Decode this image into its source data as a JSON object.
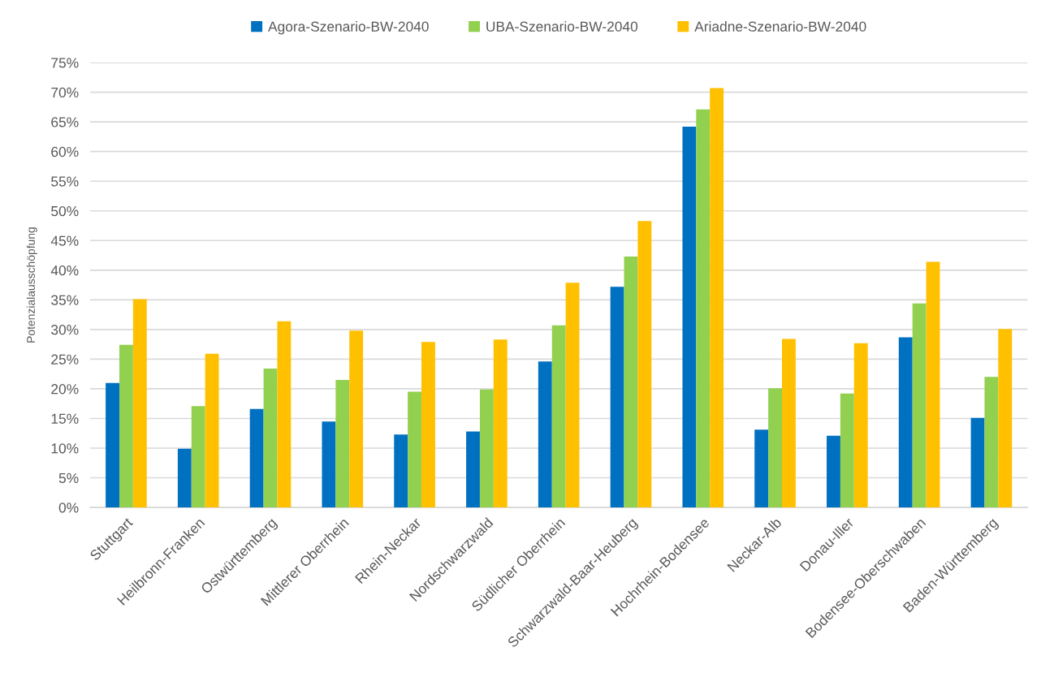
{
  "chart_data": {
    "type": "bar",
    "ylabel": "Potenzialausschöpfung",
    "categories": [
      "Stuttgart",
      "Heilbronn-Franken",
      "Ostwürttemberg",
      "Mittlerer Oberrhein",
      "Rhein-Neckar",
      "Nordschwarzwald",
      "Südlicher Oberrhein",
      "Schwarzwald-Baar-Heuberg",
      "Hochrhein-Bodensee",
      "Neckar-Alb",
      "Donau-Iller",
      "Bodensee-Oberschwaben",
      "Baden-Württemberg"
    ],
    "series": [
      {
        "name": "Agora-Szenario-BW-2040",
        "color": "#0070c0",
        "values": [
          21.0,
          9.9,
          16.6,
          14.5,
          12.3,
          12.8,
          24.6,
          37.2,
          64.2,
          13.1,
          12.1,
          28.7,
          15.1
        ]
      },
      {
        "name": "UBA-Szenario-BW-2040",
        "color": "#92d050",
        "values": [
          27.4,
          17.1,
          23.4,
          21.5,
          19.5,
          19.9,
          30.7,
          42.3,
          67.1,
          20.1,
          19.2,
          34.4,
          22.0
        ]
      },
      {
        "name": "Ariadne-Szenario-BW-2040",
        "color": "#ffc000",
        "values": [
          35.1,
          25.9,
          31.4,
          29.8,
          27.9,
          28.3,
          37.9,
          48.3,
          70.7,
          28.4,
          27.7,
          41.4,
          30.1
        ]
      }
    ],
    "ylim": [
      0,
      75
    ],
    "yticks": [
      {
        "value": 0,
        "label": "0%"
      },
      {
        "value": 5,
        "label": "5%"
      },
      {
        "value": 10,
        "label": "10%"
      },
      {
        "value": 15,
        "label": "15%"
      },
      {
        "value": 20,
        "label": "20%"
      },
      {
        "value": 25,
        "label": "25%"
      },
      {
        "value": 30,
        "label": "30%"
      },
      {
        "value": 35,
        "label": "35%"
      },
      {
        "value": 40,
        "label": "40%"
      },
      {
        "value": 45,
        "label": "45%"
      },
      {
        "value": 50,
        "label": "50%"
      },
      {
        "value": 55,
        "label": "55%"
      },
      {
        "value": 60,
        "label": "60%"
      },
      {
        "value": 65,
        "label": "65%"
      },
      {
        "value": 70,
        "label": "70%"
      },
      {
        "value": 75,
        "label": "75%"
      }
    ],
    "grid": "y",
    "legend": "top"
  }
}
